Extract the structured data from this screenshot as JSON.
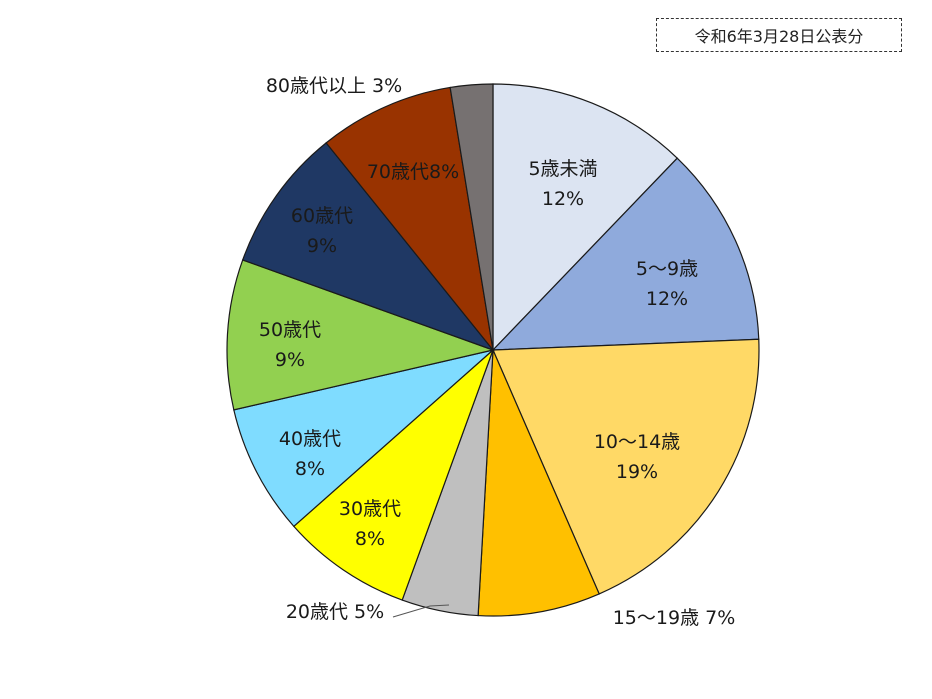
{
  "notice": "令和6年3月28日公表分",
  "chart_data": {
    "type": "pie",
    "start_angle_deg": 0,
    "direction": "clockwise",
    "slices": [
      {
        "name": "5歳未満",
        "pct_label": "12%",
        "value": 12.3,
        "color": "#dce4f2",
        "label_color": "#1a1a1a"
      },
      {
        "name": "5～9歳",
        "pct_label": "12%",
        "value": 12.3,
        "color": "#8faadc",
        "label_color": "#1a1a1a"
      },
      {
        "name": "10～14歳",
        "pct_label": "19%",
        "value": 19.3,
        "color": "#ffd966",
        "label_color": "#1a1a1a"
      },
      {
        "name": "15～19歳",
        "pct_label": "7%",
        "value": 7.5,
        "color": "#ffc000",
        "label_color": "#1a1a1a"
      },
      {
        "name": "20歳代",
        "pct_label": "5%",
        "value": 4.7,
        "color": "#bfbfbf",
        "label_color": "#1a1a1a"
      },
      {
        "name": "30歳代",
        "pct_label": "8%",
        "value": 8.0,
        "color": "#ffff00",
        "label_color": "#1a1a1a"
      },
      {
        "name": "40歳代",
        "pct_label": "8%",
        "value": 8.0,
        "color": "#7fdcff",
        "label_color": "#1a1a1a"
      },
      {
        "name": "50歳代",
        "pct_label": "9%",
        "value": 9.2,
        "color": "#92d050",
        "label_color": "#1a1a1a"
      },
      {
        "name": "60歳代",
        "pct_label": "9%",
        "value": 8.8,
        "color": "#1f3864",
        "label_color": "#ffffff"
      },
      {
        "name": "70歳代",
        "pct_label": "8%",
        "value": 8.3,
        "color": "#993300",
        "label_color": "#ffffff"
      },
      {
        "name": "80歳代以上",
        "pct_label": "3%",
        "value": 2.6,
        "color": "#767171",
        "label_color": "#1a1a1a"
      }
    ]
  }
}
